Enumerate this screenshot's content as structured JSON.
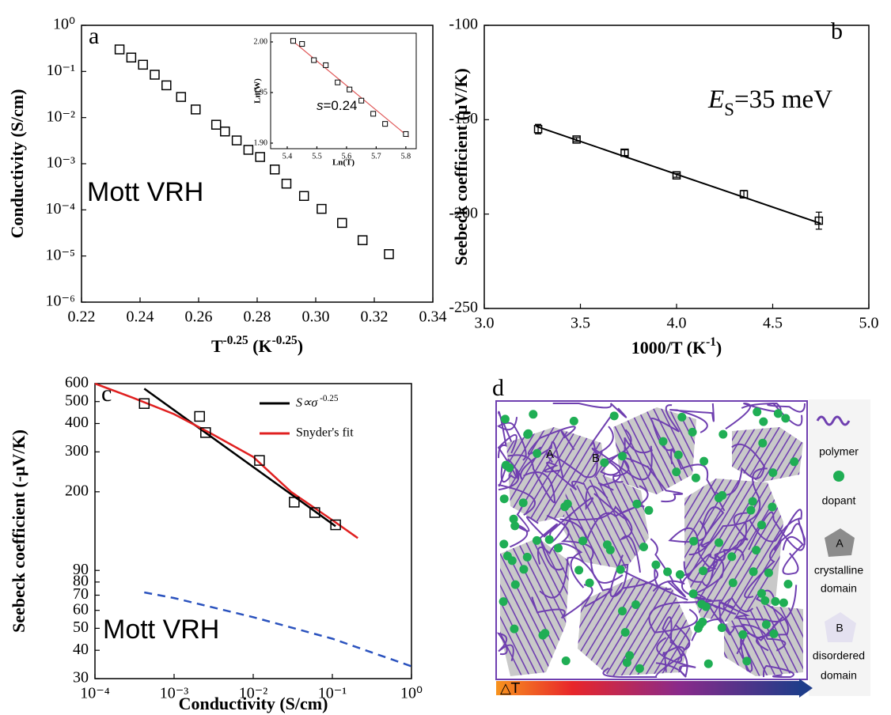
{
  "chart_data": [
    {
      "type": "scatter",
      "panel_label": "a",
      "marker": "square",
      "color": "#000000",
      "xlabel": [
        "T",
        "-0.25",
        " (K",
        "-0.25",
        ")"
      ],
      "ylabel": "Conductivity (S/cm)",
      "xlim": [
        0.22,
        0.34
      ],
      "xticks": [
        0.22,
        0.24,
        0.26,
        0.28,
        {
          "value": 0.3,
          "label": "0.30"
        },
        0.32,
        0.34
      ],
      "log_y": true,
      "ylim": [
        1e-06,
        1
      ],
      "yticks": [
        {
          "value": 1,
          "label": "10⁰"
        },
        {
          "value": 0.1,
          "label": "10⁻¹"
        },
        {
          "value": 0.01,
          "label": "10⁻²"
        },
        {
          "value": 0.001,
          "label": "10⁻³"
        },
        {
          "value": 0.0001,
          "label": "10⁻⁴"
        },
        {
          "value": 1e-05,
          "label": "10⁻⁵"
        },
        {
          "value": 1e-06,
          "label": "10⁻⁶"
        }
      ],
      "x": [
        0.233,
        0.237,
        0.241,
        0.245,
        0.249,
        0.254,
        0.259,
        0.266,
        0.269,
        0.273,
        0.277,
        0.281,
        0.286,
        0.29,
        0.296,
        0.302,
        0.309,
        0.316,
        0.325
      ],
      "values": [
        0.3,
        0.2,
        0.14,
        0.085,
        0.05,
        0.028,
        0.015,
        0.007,
        0.005,
        0.0032,
        0.002,
        0.0014,
        0.00075,
        0.00037,
        0.0002,
        0.000105,
        5.2e-05,
        2.2e-05,
        1.1e-05
      ],
      "annotation": "Mott VRH"
    },
    {
      "type": "scatter",
      "marker": "square",
      "color": "#000000",
      "xlabel": "Ln(T)",
      "ylabel": "Ln(W)",
      "xlim": [
        5.344,
        5.835
      ],
      "xticks": [
        5.4,
        5.5,
        5.6,
        5.7,
        5.8
      ],
      "ylim": [
        1.8945,
        2.0086
      ],
      "yticks": [
        {
          "value": 1.9,
          "label": "1.90"
        },
        1.95,
        {
          "value": 2,
          "label": "2.00"
        }
      ],
      "x": [
        5.42,
        5.45,
        5.49,
        5.53,
        5.57,
        5.61,
        5.65,
        5.69,
        5.73,
        5.8
      ],
      "values": [
        2.001,
        1.998,
        1.982,
        1.977,
        1.96,
        1.953,
        1.942,
        1.929,
        1.919,
        1.909
      ],
      "fit": {
        "x": [
          5.41,
          5.81
        ],
        "values": [
          2.003,
          1.906
        ],
        "color": "#e05a5a"
      },
      "annotation": [
        "s",
        "=0.24"
      ]
    },
    {
      "type": "scatter",
      "panel_label": "b",
      "marker": "square",
      "color": "#000000",
      "xlabel": [
        "1000/T (K",
        "-1",
        ")"
      ],
      "ylabel": "Seebeck coefficient (μV/K)",
      "xlim": [
        3,
        5
      ],
      "xticks": [
        {
          "value": 3,
          "label": "3.0"
        },
        3.5,
        {
          "value": 4,
          "label": "4.0"
        },
        4.5,
        {
          "value": 5,
          "label": "5.0"
        }
      ],
      "ylim": [
        -250,
        -100
      ],
      "yticks": [
        -100,
        -150,
        -200,
        -250
      ],
      "x": [
        3.28,
        3.48,
        3.73,
        4.0,
        4.35,
        4.74
      ],
      "values": [
        -155,
        -160.5,
        -167.5,
        -179.5,
        -189.5,
        -203.5
      ],
      "errors": [
        2.5,
        1,
        1.5,
        1,
        2,
        4.5
      ],
      "fit": {
        "x": [
          3.27,
          4.75
        ],
        "values": [
          -153.5,
          -205
        ],
        "color": "#000000"
      },
      "annotation": [
        "E",
        "S",
        "=35 meV"
      ]
    },
    {
      "type": "scatter",
      "panel_label": "c",
      "marker": "square",
      "color": "#000000",
      "xlabel": "Conductivity (S/cm)",
      "ylabel": "Seebeck coefficient (-μV/K)",
      "log_x": true,
      "xlim": [
        0.0001,
        1
      ],
      "xticks": [
        {
          "value": 0.0001,
          "label": "10⁻⁴"
        },
        {
          "value": 0.001,
          "label": "10⁻³"
        },
        {
          "value": 0.01,
          "label": "10⁻²"
        },
        {
          "value": 0.1,
          "label": "10⁻¹"
        },
        {
          "value": 1,
          "label": "10⁰"
        }
      ],
      "log_y": true,
      "ylim": [
        30,
        600
      ],
      "yticks": [
        30,
        40,
        50,
        60,
        70,
        80,
        90,
        200,
        300,
        400,
        500,
        600
      ],
      "x": [
        0.00042,
        0.0021,
        0.0025,
        0.012,
        0.033,
        0.06,
        0.11
      ],
      "values": [
        490,
        430,
        365,
        275,
        180,
        162,
        143
      ],
      "series": [
        {
          "name": [
            "S∝σ",
            " -0.25"
          ],
          "color": "#000000",
          "x": [
            0.00042,
            0.11
          ],
          "values": [
            570,
            141
          ]
        },
        {
          "name": "Snyder's fit",
          "color": "#e02020",
          "x": [
            0.0001,
            0.0003,
            0.001,
            0.003,
            0.01,
            0.03,
            0.1,
            0.21
          ],
          "values": [
            600,
            520,
            440,
            360,
            285,
            200,
            150,
            125
          ]
        },
        {
          "color": "#2a52be",
          "dashed": true,
          "x": [
            0.00042,
            0.001,
            0.01,
            0.1,
            1
          ],
          "values": [
            72,
            68,
            56,
            45,
            34
          ]
        }
      ],
      "annotation": "Mott VRH"
    }
  ],
  "schematic": {
    "panel_label": "d",
    "labels": [
      "A",
      "B"
    ],
    "gradient_label": "△T",
    "legend": [
      {
        "label": [
          "polymer"
        ]
      },
      {
        "label": [
          "dopant"
        ]
      },
      {
        "symbol": "A",
        "label": [
          "crystalline",
          "domain"
        ]
      },
      {
        "symbol": "B",
        "label": [
          "disordered",
          "domain"
        ]
      }
    ]
  }
}
